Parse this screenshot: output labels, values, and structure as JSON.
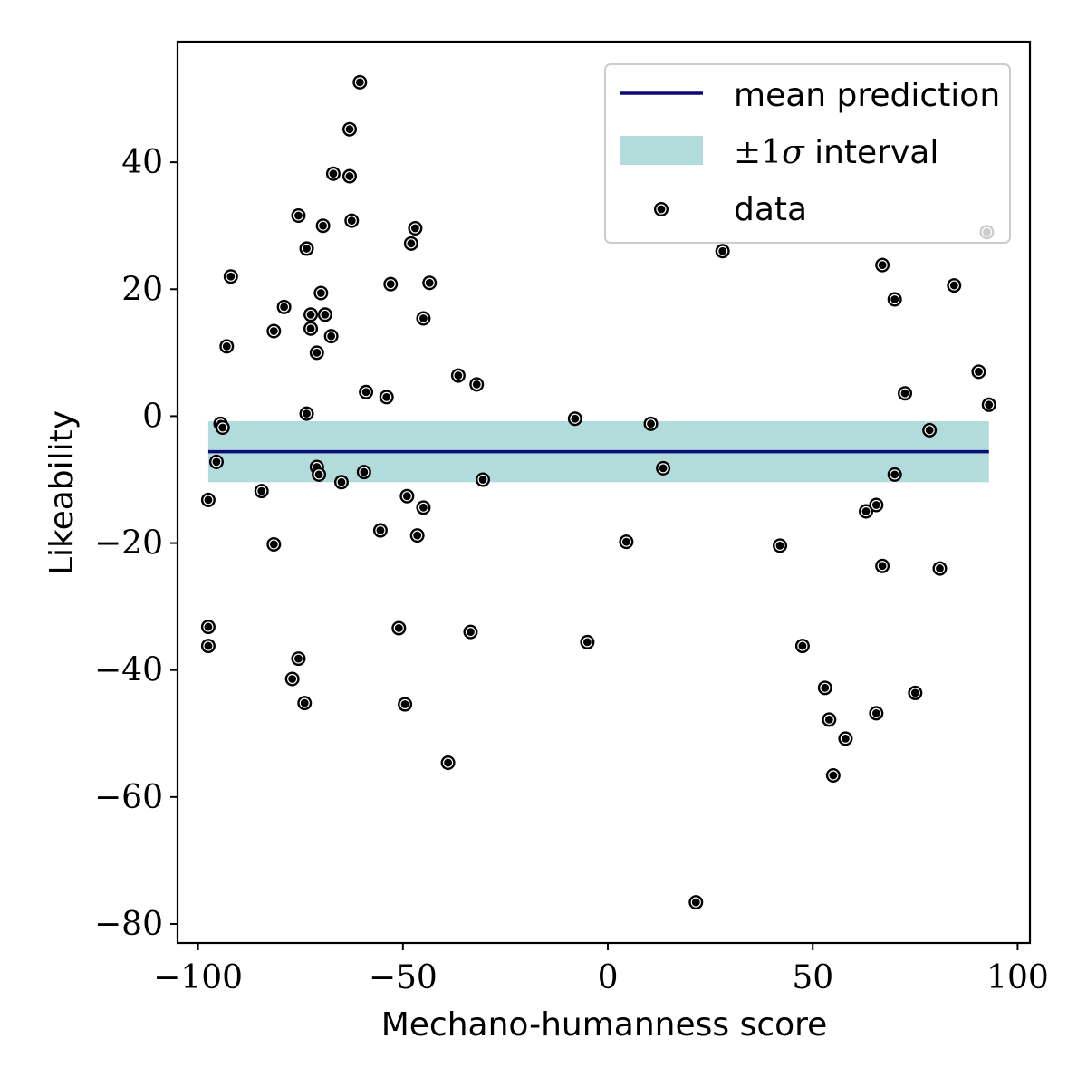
{
  "chart_data": {
    "type": "scatter",
    "title": "",
    "xlabel": "Mechano-humanness score",
    "ylabel": "Likeability",
    "xlim": [
      -105,
      103
    ],
    "ylim": [
      -83,
      59
    ],
    "xticks": [
      -100,
      -50,
      0,
      50,
      100
    ],
    "yticks": [
      -80,
      -60,
      -40,
      -20,
      0,
      20,
      40
    ],
    "xtick_labels": [
      "−100",
      "−50",
      "0",
      "50",
      "100"
    ],
    "ytick_labels": [
      "−80",
      "−60",
      "−40",
      "−20",
      "0",
      "20",
      "40"
    ],
    "grid": false,
    "legend_position": "top-right",
    "legend": {
      "line_label": "mean prediction",
      "band_label_pm": "±",
      "band_label_num": "1",
      "band_label_sigma": "σ",
      "band_label_rest": "interval",
      "points_label": "data"
    },
    "colors": {
      "mean_line": "#0a0a78",
      "band": "#b2dbdc",
      "points": "#000000"
    },
    "mean_prediction": {
      "x": [
        -97.5,
        93.0
      ],
      "y": [
        -5.6,
        -5.6
      ]
    },
    "interval": {
      "x": [
        -97.5,
        93.0
      ],
      "lower": [
        -10.4,
        -10.4
      ],
      "upper": [
        -0.8,
        -0.8
      ]
    },
    "series": [
      {
        "name": "data",
        "points": [
          [
            -97.5,
            -13.2
          ],
          [
            -97.5,
            -33.2
          ],
          [
            -97.5,
            -36.2
          ],
          [
            -95.5,
            -7.2
          ],
          [
            -94.5,
            -1.2
          ],
          [
            -94.0,
            -1.8
          ],
          [
            -93.0,
            11.0
          ],
          [
            -92.0,
            22.0
          ],
          [
            -84.5,
            -11.8
          ],
          [
            -81.5,
            -20.2
          ],
          [
            -81.5,
            13.4
          ],
          [
            -79.0,
            17.2
          ],
          [
            -77.0,
            -41.4
          ],
          [
            -75.5,
            31.6
          ],
          [
            -75.5,
            -38.2
          ],
          [
            -74.0,
            -45.2
          ],
          [
            -73.5,
            0.4
          ],
          [
            -73.5,
            26.4
          ],
          [
            -72.5,
            13.8
          ],
          [
            -72.5,
            16.0
          ],
          [
            -71.0,
            -8.0
          ],
          [
            -71.0,
            10.0
          ],
          [
            -70.5,
            -9.2
          ],
          [
            -70.0,
            19.4
          ],
          [
            -69.5,
            30.0
          ],
          [
            -69.0,
            16.0
          ],
          [
            -67.5,
            12.6
          ],
          [
            -67.0,
            38.2
          ],
          [
            -65.0,
            -10.4
          ],
          [
            -63.0,
            37.8
          ],
          [
            -63.0,
            45.2
          ],
          [
            -62.5,
            30.8
          ],
          [
            -60.5,
            52.6
          ],
          [
            -59.5,
            -8.8
          ],
          [
            -59.0,
            3.8
          ],
          [
            -55.5,
            -18.0
          ],
          [
            -54.0,
            3.0
          ],
          [
            -53.0,
            20.8
          ],
          [
            -51.0,
            -33.4
          ],
          [
            -49.5,
            -45.4
          ],
          [
            -49.0,
            -12.6
          ],
          [
            -48.0,
            27.2
          ],
          [
            -47.0,
            29.6
          ],
          [
            -46.5,
            -18.8
          ],
          [
            -45.0,
            -14.4
          ],
          [
            -45.0,
            15.4
          ],
          [
            -43.5,
            21.0
          ],
          [
            -39.0,
            -54.6
          ],
          [
            -36.5,
            6.4
          ],
          [
            -33.5,
            -34.0
          ],
          [
            -32.0,
            5.0
          ],
          [
            -30.5,
            -10.0
          ],
          [
            -8.0,
            -0.4
          ],
          [
            -5.0,
            -35.6
          ],
          [
            4.5,
            -19.8
          ],
          [
            10.5,
            -1.2
          ],
          [
            13.5,
            -8.2
          ],
          [
            21.5,
            -76.6
          ],
          [
            28.0,
            26.0
          ],
          [
            42.0,
            -20.4
          ],
          [
            47.5,
            -36.2
          ],
          [
            53.0,
            -42.8
          ],
          [
            54.0,
            -47.8
          ],
          [
            55.0,
            -56.6
          ],
          [
            58.0,
            -50.8
          ],
          [
            63.0,
            -15.0
          ],
          [
            65.5,
            -14.0
          ],
          [
            65.5,
            -46.8
          ],
          [
            67.0,
            23.8
          ],
          [
            67.0,
            -23.6
          ],
          [
            70.0,
            18.4
          ],
          [
            70.0,
            -9.2
          ],
          [
            72.5,
            3.6
          ],
          [
            75.0,
            -43.6
          ],
          [
            78.5,
            -2.2
          ],
          [
            81.0,
            -24.0
          ],
          [
            84.5,
            20.6
          ],
          [
            90.5,
            7.0
          ],
          [
            92.5,
            29.0
          ],
          [
            93.0,
            1.8
          ]
        ]
      }
    ]
  }
}
